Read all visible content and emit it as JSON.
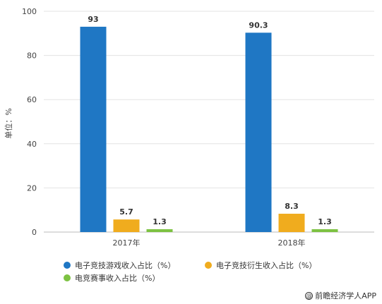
{
  "chart_data": {
    "type": "bar",
    "categories": [
      "2017年",
      "2018年"
    ],
    "series": [
      {
        "name": "电子竞技游戏收入占比（%）",
        "values": [
          93,
          90.3
        ],
        "color": "#1f77c4"
      },
      {
        "name": "电子竞技衍生收入占比（%）",
        "values": [
          5.7,
          8.3
        ],
        "color": "#f0ac1e"
      },
      {
        "name": "电竞赛事收入占比（%）",
        "values": [
          1.3,
          1.3
        ],
        "color": "#7dc242"
      }
    ],
    "ylabel": "单位：%",
    "ylim": [
      0,
      100
    ],
    "yticks": [
      0,
      20,
      40,
      60,
      80,
      100
    ],
    "grid": true,
    "legend_position": "bottom"
  },
  "source": {
    "icon": "copyright-icon",
    "text": "前瞻经济学人APP"
  }
}
